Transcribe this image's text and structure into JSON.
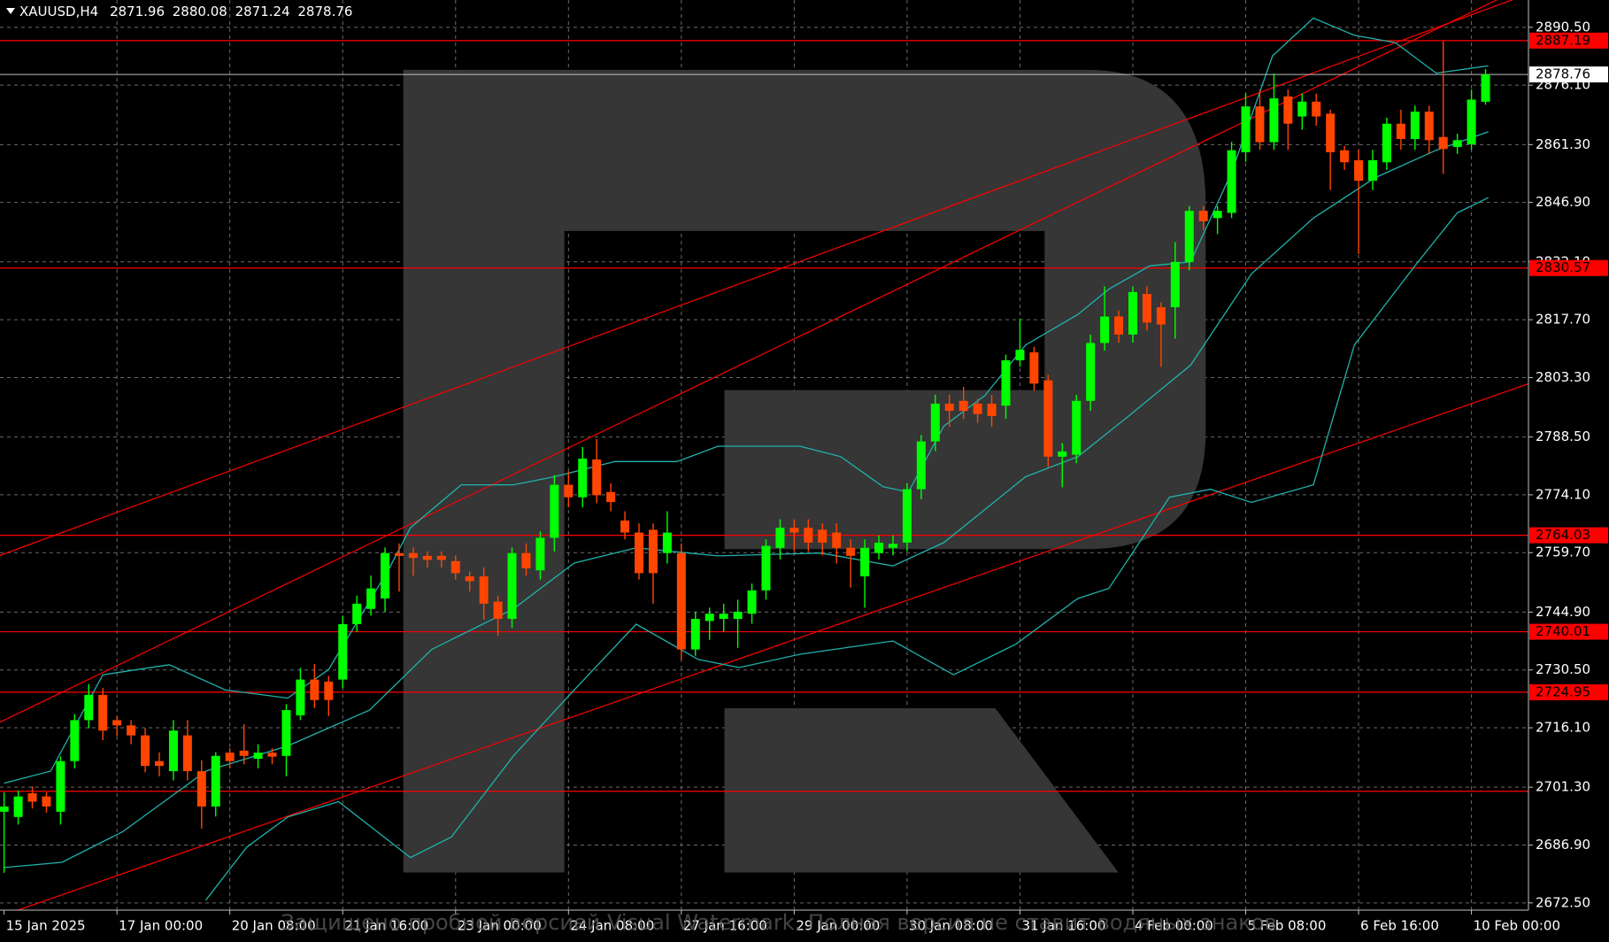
{
  "chart_data": {
    "type": "candlestick",
    "symbol": "XAUUSD,H4",
    "categories": [
      "15 Jan 2025",
      null,
      null,
      null,
      null,
      null,
      null,
      null,
      "17 Jan 00:00",
      null,
      null,
      null,
      null,
      null,
      null,
      null,
      "20 Jan 08:00",
      null,
      null,
      null,
      null,
      null,
      null,
      null,
      "21 Jan 16:00",
      null,
      null,
      null,
      null,
      null,
      null,
      null,
      "23 Jan 00:00",
      null,
      null,
      null,
      null,
      null,
      null,
      null,
      "24 Jan 08:00",
      null,
      null,
      null,
      null,
      null,
      null,
      null,
      "27 Jan 16:00",
      null,
      null,
      null,
      null,
      null,
      null,
      null,
      "29 Jan 00:00",
      null,
      null,
      null,
      null,
      null,
      null,
      null,
      "30 Jan 08:00",
      null,
      null,
      null,
      null,
      null,
      null,
      null,
      "31 Jan 16:00",
      null,
      null,
      null,
      null,
      null,
      null,
      null,
      "4 Feb 00:00",
      null,
      null,
      null,
      null,
      null,
      null,
      null,
      "5 Feb 08:00",
      null,
      null,
      null,
      null,
      null,
      null,
      null,
      "6 Feb 16:00",
      null,
      null,
      null,
      null,
      null,
      null,
      null,
      "10 Feb 00:00",
      null
    ],
    "open": [
      2695.2,
      2693.9,
      2699.8,
      2699.0,
      2695.2,
      2707.8,
      2718.0,
      2724.3,
      2718.0,
      2716.7,
      2714.2,
      2707.8,
      2705.3,
      2714.2,
      2705.3,
      2696.5,
      2709.9,
      2710.4,
      2708.4,
      2709.9,
      2709.1,
      2719.2,
      2728.1,
      2727.6,
      2728.1,
      2741.9,
      2745.7,
      2748.3,
      2759.6,
      2759.6,
      2758.9,
      2758.9,
      2757.6,
      2753.8,
      2753.8,
      2747.5,
      2743.2,
      2759.6,
      2755.3,
      2763.4,
      2776.6,
      2773.5,
      2782.9,
      2774.8,
      2767.7,
      2764.7,
      2765.4,
      2759.6,
      2759.6,
      2735.6,
      2742.7,
      2743.2,
      2743.2,
      2744.5,
      2750.3,
      2760.9,
      2765.9,
      2765.9,
      2765.4,
      2764.7,
      2760.9,
      2753.8,
      2759.6,
      2760.9,
      2762.2,
      2775.5,
      2787.4,
      2796.8,
      2797.5,
      2796.8,
      2796.8,
      2796.3,
      2807.6,
      2809.6,
      2802.6,
      2783.6,
      2784.1,
      2797.5,
      2811.9,
      2818.5,
      2814.0,
      2824.1,
      2820.8,
      2820.8,
      2832.1,
      2844.8,
      2843.0,
      2844.3,
      2859.4,
      2870.8,
      2861.9,
      2873.3,
      2868.3,
      2872.0,
      2869.0,
      2859.9,
      2857.4,
      2852.3,
      2856.9,
      2866.5,
      2862.7,
      2869.5,
      2863.2,
      2860.7,
      2861.4,
      2871.96
    ],
    "high": [
      2700,
      2700.5,
      2701.5,
      2700,
      2709,
      2719.5,
      2727,
      2726,
      2719,
      2718,
      2716,
      2710,
      2718,
      2718,
      2708,
      2710,
      2711,
      2717,
      2712,
      2711,
      2722,
      2731,
      2732,
      2729,
      2744,
      2749,
      2754,
      2761,
      2762,
      2761,
      2760,
      2760,
      2759,
      2755,
      2756,
      2749,
      2761,
      2762,
      2765,
      2779,
      2780,
      2786,
      2788,
      2777,
      2770,
      2767,
      2767,
      2770,
      2762,
      2745,
      2746,
      2747,
      2748,
      2752,
      2763,
      2768,
      2768,
      2768,
      2767,
      2767,
      2763,
      2763,
      2764,
      2764,
      2777,
      2789,
      2799,
      2799,
      2801,
      2798,
      2799,
      2809,
      2818,
      2811,
      2804,
      2787,
      2799,
      2814,
      2826,
      2820,
      2826,
      2826,
      2822,
      2837,
      2846,
      2846,
      2846,
      2862,
      2874,
      2875,
      2879,
      2875,
      2874,
      2874,
      2870,
      2861,
      2860,
      2860,
      2868,
      2870,
      2871,
      2871,
      2887,
      2864,
      2875,
      2880.08
    ],
    "low": [
      2680,
      2692,
      2696,
      2695,
      2692,
      2706,
      2716,
      2713,
      2714,
      2712,
      2705,
      2704,
      2703,
      2703,
      2691,
      2694,
      2706,
      2707,
      2706,
      2707,
      2704,
      2718,
      2721,
      2719,
      2726,
      2740,
      2744,
      2745,
      2750,
      2754,
      2756,
      2756,
      2753,
      2750,
      2743,
      2739,
      2741,
      2754,
      2753,
      2760,
      2771,
      2771,
      2772,
      2770,
      2763,
      2753,
      2747,
      2757,
      2733,
      2734,
      2738,
      2740,
      2736,
      2742,
      2748,
      2758,
      2760,
      2760,
      2759,
      2757,
      2751,
      2746,
      2758,
      2759,
      2760,
      2773,
      2785,
      2791,
      2793,
      2792,
      2791,
      2793,
      2806,
      2800,
      2781,
      2776,
      2782,
      2795,
      2810,
      2812,
      2812,
      2815,
      2806,
      2813,
      2830,
      2840,
      2839,
      2843,
      2857,
      2860,
      2860,
      2860,
      2865,
      2866,
      2850,
      2855,
      2834,
      2850,
      2855,
      2860,
      2860,
      2859,
      2854,
      2859,
      2860,
      2871.24
    ],
    "close": [
      2696.5,
      2699.0,
      2697.7,
      2696.5,
      2707.8,
      2718.0,
      2724.3,
      2715.4,
      2716.7,
      2714.2,
      2706.6,
      2706.6,
      2715.4,
      2705.3,
      2696.5,
      2709.1,
      2707.8,
      2709.1,
      2709.9,
      2708.9,
      2720.5,
      2728.1,
      2723.0,
      2723.0,
      2741.9,
      2747.0,
      2750.8,
      2759.6,
      2758.9,
      2758.4,
      2757.9,
      2757.9,
      2754.6,
      2752.6,
      2747.0,
      2743.2,
      2759.6,
      2755.8,
      2763.4,
      2776.6,
      2773.5,
      2783.1,
      2774.0,
      2772.3,
      2764.7,
      2754.6,
      2754.6,
      2764.7,
      2735.6,
      2743.2,
      2744.5,
      2744.5,
      2745.0,
      2750.3,
      2761.4,
      2765.9,
      2764.7,
      2762.2,
      2762.2,
      2760.9,
      2758.9,
      2760.9,
      2762.2,
      2761.9,
      2775.5,
      2787.4,
      2796.8,
      2795.0,
      2795.0,
      2794.2,
      2793.7,
      2807.6,
      2810.2,
      2801.8,
      2783.6,
      2784.9,
      2797.5,
      2811.9,
      2818.5,
      2814.0,
      2824.6,
      2817.0,
      2816.5,
      2832.1,
      2844.8,
      2842.2,
      2844.8,
      2859.9,
      2870.8,
      2861.9,
      2872.8,
      2866.5,
      2872.0,
      2868.3,
      2859.4,
      2856.9,
      2852.3,
      2857.4,
      2866.5,
      2862.7,
      2869.5,
      2862.4,
      2860.2,
      2862.4,
      2872.5,
      2878.76
    ],
    "up_color": "#00ff00",
    "down_color": "#ff4500",
    "ylim": [
      2670.7,
      2897.3
    ],
    "yticks": [
      {
        "value": 2890.5,
        "label": "2890.50"
      },
      {
        "value": 2876.1,
        "label": "2876.10"
      },
      {
        "value": 2861.3,
        "label": "2861.30"
      },
      {
        "value": 2846.9,
        "label": "2846.90"
      },
      {
        "value": 2832.1,
        "label": "2832.10"
      },
      {
        "value": 2817.7,
        "label": "2817.70"
      },
      {
        "value": 2803.3,
        "label": "2803.30"
      },
      {
        "value": 2788.5,
        "label": "2788.50"
      },
      {
        "value": 2774.1,
        "label": "2774.10"
      },
      {
        "value": 2759.7,
        "label": "2759.70"
      },
      {
        "value": 2744.9,
        "label": "2744.90"
      },
      {
        "value": 2730.5,
        "label": "2730.50"
      },
      {
        "value": 2716.1,
        "label": "2716.10"
      },
      {
        "value": 2701.3,
        "label": "2701.30"
      },
      {
        "value": 2686.9,
        "label": "2686.90"
      },
      {
        "value": 2672.5,
        "label": "2672.50"
      }
    ],
    "grid": true,
    "levels": [
      2887.19,
      2830.57,
      2764.03,
      2740.01,
      2724.95
    ],
    "extra_levels": [
      2700.3
    ],
    "level_color": "#ff0000",
    "price_line_color": "#c0c0c0",
    "trendlines": [
      {
        "x": [
          0,
          105
        ],
        "values": [
          2759.4,
          2894.9
        ]
      },
      {
        "x": [
          0,
          100
        ],
        "values": [
          2718.0,
          2887.5
        ]
      },
      {
        "x": [
          0,
          100
        ],
        "values": [
          2669.5,
          2791.9
        ]
      }
    ],
    "band_color": "#20b2aa",
    "bands": [
      {
        "x": [
          0,
          3.3,
          7.0,
          11.7,
          15.7,
          20.1,
          23.0,
          27.3,
          28.8,
          32.4,
          36.1,
          39.0,
          43.3,
          47.7,
          50.6,
          56.4,
          59.3,
          62.3,
          64.1,
          66.6,
          69.5,
          72.4,
          76.1,
          78.3,
          81.2,
          84.1,
          87.0,
          89.9,
          92.8,
          95.7,
          98.6,
          101.5,
          105.2
        ],
        "values": [
          2702.3,
          2705.3,
          2729.3,
          2731.8,
          2725.5,
          2723.5,
          2730.6,
          2755.8,
          2765.9,
          2776.6,
          2776.6,
          2778.6,
          2782.4,
          2782.4,
          2786.2,
          2786.2,
          2783.6,
          2776.1,
          2774.8,
          2791.2,
          2798.8,
          2811.4,
          2819.0,
          2825.3,
          2831.1,
          2832.1,
          2854.4,
          2883.4,
          2892.8,
          2888.5,
          2886.7,
          2879.1,
          2880.9
        ]
      },
      {
        "x": [
          0,
          4.1,
          8.4,
          14.3,
          20.1,
          25.9,
          30.3,
          36.1,
          40.4,
          44.8,
          50.6,
          57.9,
          63.0,
          66.6,
          72.4,
          76.1,
          79.7,
          84.1,
          88.4,
          92.8,
          97.2,
          101.5,
          105.2
        ],
        "values": [
          2681.3,
          2682.6,
          2690.2,
          2705.3,
          2711.6,
          2720.5,
          2735.6,
          2745.7,
          2757.1,
          2760.9,
          2758.9,
          2759.6,
          2756.4,
          2762.2,
          2778.6,
          2783.6,
          2793.7,
          2806.4,
          2829.1,
          2843.0,
          2853.1,
          2859.9,
          2864.5
        ]
      },
      {
        "x": [
          14.3,
          17.2,
          20.1,
          23.7,
          28.8,
          31.7,
          36.1,
          40.4,
          44.8,
          49.2,
          52.1,
          56.4,
          63.0,
          67.3,
          71.7,
          76.1,
          78.3,
          82.6,
          85.5,
          88.4,
          92.8,
          95.7,
          100.1,
          103.0,
          105.2
        ],
        "values": [
          2673.2,
          2686.4,
          2693.9,
          2697.7,
          2683.8,
          2688.9,
          2709.1,
          2725.5,
          2741.9,
          2733.1,
          2731.1,
          2734.4,
          2737.7,
          2729.3,
          2736.9,
          2748.3,
          2750.8,
          2773.5,
          2775.5,
          2772.2,
          2776.6,
          2811.4,
          2831.6,
          2844.3,
          2848.1
        ]
      }
    ],
    "watermark": "Защищено пробной версией Visual Watermark. Полная версия не ставит водяных знаков"
  }
}
